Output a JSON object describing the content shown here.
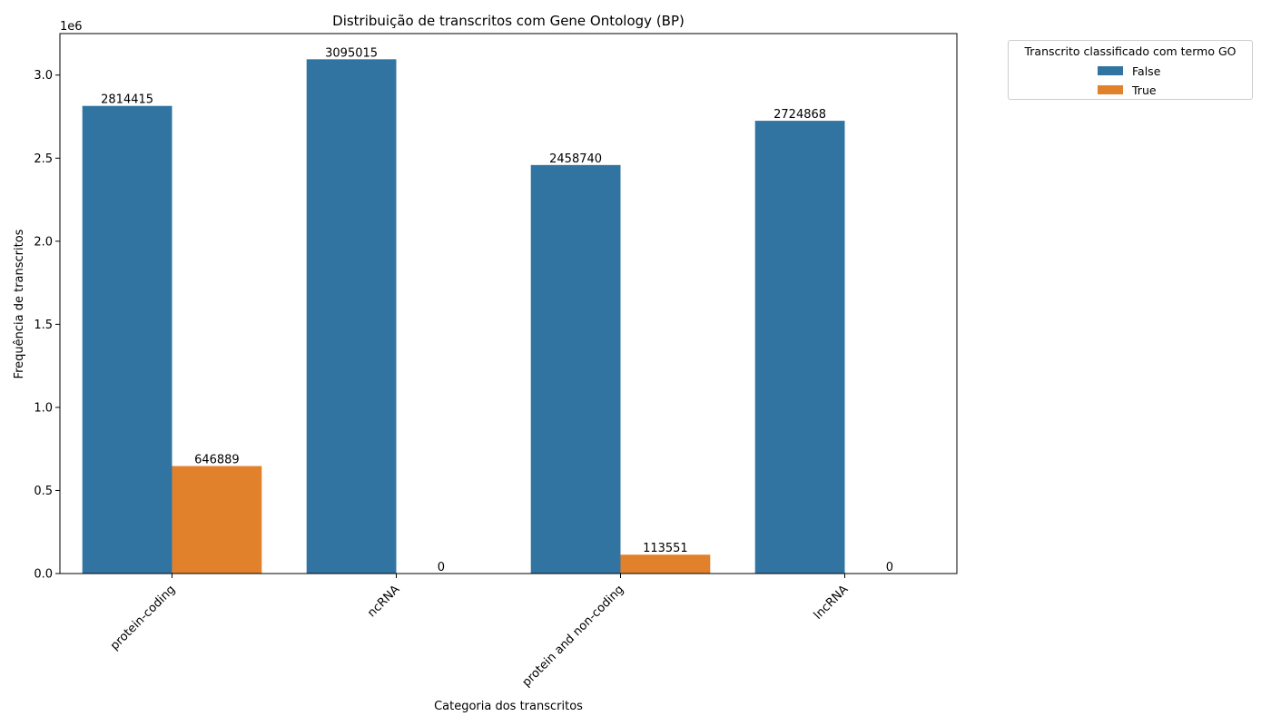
{
  "chart_data": {
    "type": "bar",
    "title": "Distribuição de transcritos com Gene Ontology (BP)",
    "xlabel": "Categoria dos transcritos",
    "ylabel": "Frequência de transcritos",
    "y_offset_label": "1e6",
    "categories": [
      "protein-coding",
      "ncRNA",
      "protein and non-coding",
      "lncRNA"
    ],
    "series": [
      {
        "name": "False",
        "color": "#3274a1",
        "values": [
          2814415,
          3095015,
          2458740,
          2724868
        ]
      },
      {
        "name": "True",
        "color": "#e1812c",
        "values": [
          646889,
          0,
          113551,
          0
        ]
      }
    ],
    "yticks": [
      0.0,
      0.5,
      1.0,
      1.5,
      2.0,
      2.5,
      3.0
    ],
    "ytick_scale": 1000000,
    "ylim": [
      0,
      3249766
    ],
    "legend": {
      "title": "Transcrito classificado com termo GO",
      "placement": "outside-top-right"
    },
    "grid": false
  }
}
